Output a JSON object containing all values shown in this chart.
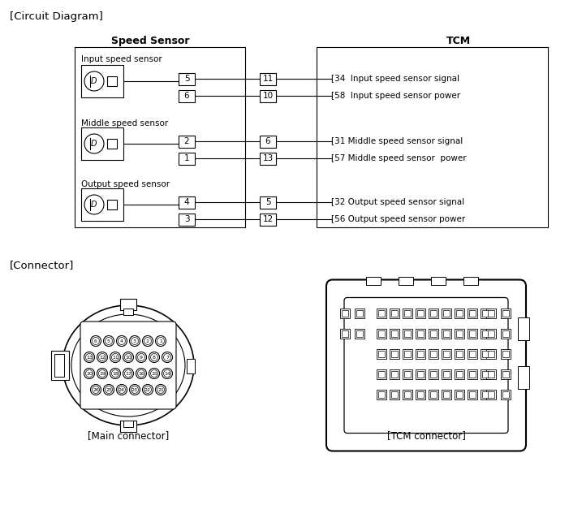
{
  "title_circuit": "[Circuit Diagram]",
  "title_connector": "[Connector]",
  "speed_sensor_label": "Speed Sensor",
  "tcm_label": "TCM",
  "main_connector_label": "[Main connector]",
  "tcm_connector_label": "[TCM connector]",
  "sensor_groups": [
    {
      "name": "Input speed sensor",
      "pins_l": [
        "5",
        "6"
      ],
      "pins_r": [
        "11",
        "10"
      ],
      "tcm_labels": [
        "[34  Input speed sensor signal",
        "[58  Input speed sensor power"
      ]
    },
    {
      "name": "Middle speed sensor",
      "pins_l": [
        "2",
        "1"
      ],
      "pins_r": [
        "6",
        "13"
      ],
      "tcm_labels": [
        "[31 Middle speed sensor signal",
        "[57 Middle speed sensor  power"
      ]
    },
    {
      "name": "Output speed sensor",
      "pins_l": [
        "4",
        "3"
      ],
      "pins_r": [
        "5",
        "12"
      ],
      "tcm_labels": [
        "[32 Output speed sensor signal",
        "[56 Output speed sensor power"
      ]
    }
  ],
  "bg_color": "#ffffff",
  "main_pin_rows": [
    [
      6,
      5,
      4,
      3,
      2,
      1
    ],
    [
      13,
      12,
      11,
      10,
      9,
      8,
      7
    ],
    [
      20,
      19,
      18,
      17,
      16,
      15,
      14
    ],
    [
      26,
      25,
      24,
      23,
      22,
      21
    ]
  ]
}
